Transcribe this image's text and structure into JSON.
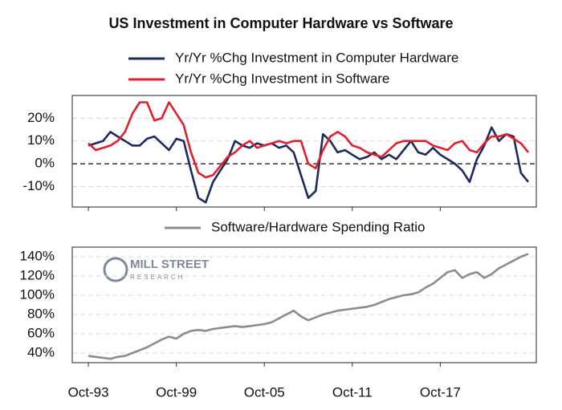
{
  "watermark": [
    "MILL STREET",
    "RESEARCH"
  ],
  "chart_data": [
    {
      "type": "line",
      "title": "US Investment in Computer Hardware vs Software",
      "x": [
        1993.75,
        1994.25,
        1994.75,
        1995.25,
        1995.75,
        1996.25,
        1996.75,
        1997.25,
        1997.75,
        1998.25,
        1998.75,
        1999.25,
        1999.75,
        2000.25,
        2000.75,
        2001.25,
        2001.75,
        2002.25,
        2002.75,
        2003.25,
        2003.75,
        2004.25,
        2004.75,
        2005.25,
        2005.75,
        2006.25,
        2006.75,
        2007.25,
        2007.75,
        2008.25,
        2008.75,
        2009.25,
        2009.75,
        2010.25,
        2010.75,
        2011.25,
        2011.75,
        2012.25,
        2012.75,
        2013.25,
        2013.75,
        2014.25,
        2014.75,
        2015.25,
        2015.75,
        2016.25,
        2016.75,
        2017.25,
        2017.75,
        2018.25,
        2018.75,
        2019.25,
        2019.75,
        2020.25,
        2020.75,
        2021.25,
        2021.75,
        2022.25,
        2022.75,
        2023.25,
        2023.75
      ],
      "series": [
        {
          "name": "Yr/Yr %Chg Investment in Computer Hardware",
          "color": "#1d2b5c",
          "values": [
            8,
            9,
            10,
            14,
            12,
            10,
            8,
            8,
            11,
            12,
            9,
            6,
            11,
            10,
            -3,
            -15,
            -17,
            -8,
            -3,
            2,
            10,
            8,
            7,
            9,
            8,
            9,
            7,
            8,
            5,
            -5,
            -15,
            -12,
            13,
            10,
            5,
            6,
            4,
            2,
            3,
            5,
            2,
            4,
            2,
            6,
            10,
            5,
            4,
            7,
            4,
            2,
            0,
            -3,
            -8,
            2,
            8,
            16,
            10,
            13,
            12,
            -4,
            -8
          ]
        },
        {
          "name": "Yr/Yr %Chg Investment in Software",
          "color": "#e0202e",
          "values": [
            9,
            6,
            7,
            8,
            10,
            14,
            22,
            27,
            27,
            19,
            20,
            27,
            22,
            17,
            5,
            -4,
            -6,
            -5,
            -1,
            3,
            5,
            8,
            10,
            7,
            8,
            9,
            10,
            9,
            10,
            10,
            0,
            -2,
            6,
            12,
            14,
            12,
            8,
            7,
            5,
            4,
            3,
            6,
            9,
            10,
            10,
            10,
            10,
            8,
            7,
            6,
            9,
            10,
            6,
            5,
            9,
            12,
            12,
            13,
            11,
            9,
            5
          ]
        }
      ],
      "xlim": [
        1992.65,
        2024.3
      ],
      "xticks": [
        1993.75,
        1999.75,
        2005.75,
        2011.75,
        2017.75
      ],
      "ylim": [
        -19,
        30
      ],
      "yticks": [
        {
          "value": -10,
          "label": "-10%"
        },
        {
          "value": 0,
          "label": "0%"
        },
        {
          "value": 10,
          "label": "10%"
        },
        {
          "value": 20,
          "label": "20%"
        }
      ],
      "hline": 0,
      "grid": true
    },
    {
      "type": "line",
      "x": [
        1993.75,
        1994.25,
        1994.75,
        1995.25,
        1995.75,
        1996.25,
        1996.75,
        1997.25,
        1997.75,
        1998.25,
        1998.75,
        1999.25,
        1999.75,
        2000.25,
        2000.75,
        2001.25,
        2001.75,
        2002.25,
        2002.75,
        2003.25,
        2003.75,
        2004.25,
        2004.75,
        2005.25,
        2005.75,
        2006.25,
        2006.75,
        2007.25,
        2007.75,
        2008.25,
        2008.75,
        2009.25,
        2009.75,
        2010.25,
        2010.75,
        2011.25,
        2011.75,
        2012.25,
        2012.75,
        2013.25,
        2013.75,
        2014.25,
        2014.75,
        2015.25,
        2015.75,
        2016.25,
        2016.75,
        2017.25,
        2017.75,
        2018.25,
        2018.75,
        2019.25,
        2019.75,
        2020.25,
        2020.75,
        2021.25,
        2021.75,
        2022.25,
        2022.75,
        2023.25,
        2023.75
      ],
      "series": [
        {
          "name": "Software/Hardware Spending Ratio",
          "color": "#8c8c8c",
          "values": [
            37,
            36,
            35,
            34,
            36,
            37,
            40,
            43,
            46,
            50,
            54,
            57,
            55,
            60,
            63,
            64,
            63,
            65,
            66,
            67,
            68,
            67,
            68,
            69,
            70,
            72,
            76,
            80,
            84,
            78,
            74,
            77,
            80,
            82,
            84,
            85,
            86,
            87,
            88,
            90,
            93,
            96,
            98,
            100,
            101,
            103,
            108,
            112,
            118,
            124,
            126,
            118,
            122,
            124,
            118,
            122,
            128,
            132,
            136,
            140,
            143
          ]
        }
      ],
      "xlim": [
        1992.65,
        2024.3
      ],
      "xticks": [
        {
          "value": 1993.75,
          "label": "Oct-93"
        },
        {
          "value": 1999.75,
          "label": "Oct-99"
        },
        {
          "value": 2005.75,
          "label": "Oct-05"
        },
        {
          "value": 2011.75,
          "label": "Oct-11"
        },
        {
          "value": 2017.75,
          "label": "Oct-17"
        }
      ],
      "ylim": [
        30,
        150
      ],
      "yticks": [
        {
          "value": 40,
          "label": "40%"
        },
        {
          "value": 60,
          "label": "60%"
        },
        {
          "value": 80,
          "label": "80%"
        },
        {
          "value": 100,
          "label": "100%"
        },
        {
          "value": 120,
          "label": "120%"
        },
        {
          "value": 140,
          "label": "140%"
        }
      ],
      "grid": true
    }
  ]
}
